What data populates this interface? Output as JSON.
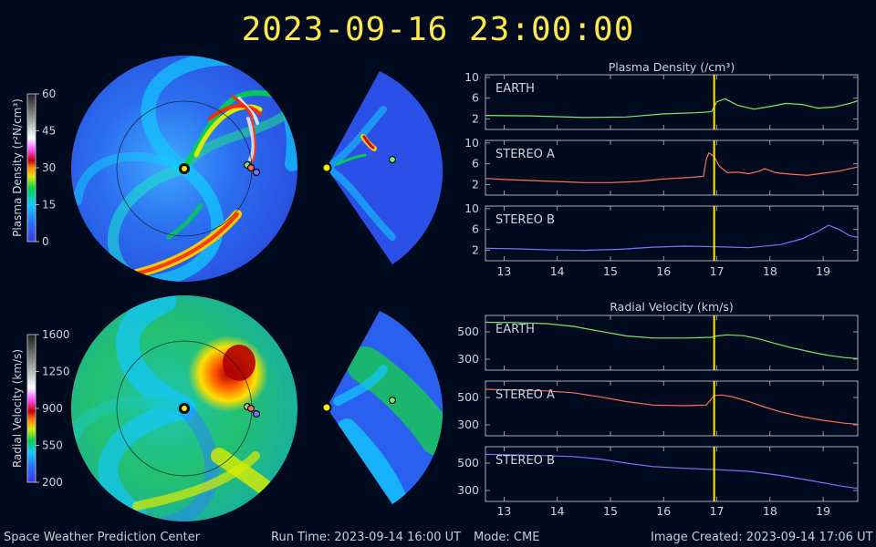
{
  "header": {
    "timestamp": "2023-09-16 23:00:00"
  },
  "footer": {
    "center": "Space Weather Prediction Center",
    "run_time": "Run Time: 2023-09-14 16:00 UT",
    "mode": "Mode: CME",
    "image_created": "Image Created: 2023-09-14 17:06 UT"
  },
  "colorbars": {
    "density": {
      "label": "Plasma Density (r²N/cm³)",
      "ticks": [
        "60",
        "45",
        "30",
        "15",
        "0"
      ]
    },
    "velocity": {
      "label": "Radial Velocity (km/s)",
      "ticks": [
        "1600",
        "1250",
        "900",
        "550",
        "200"
      ]
    }
  },
  "colors": {
    "earth": "#7dea6a",
    "stereo_a": "#ff6e5a",
    "stereo_b": "#6f78ff",
    "current_time": "#ffee00",
    "background": "#000a1e"
  },
  "chart_data": [
    {
      "type": "line",
      "title": "Plasma Density (/cm³)",
      "xlim": [
        12.65,
        19.65
      ],
      "x_ticks": [
        "13",
        "14",
        "15",
        "16",
        "17",
        "18",
        "19"
      ],
      "current_time_x": 16.95,
      "panels": [
        {
          "name": "EARTH",
          "color": "#7dea6a",
          "ylim": [
            0,
            10.5
          ],
          "y_ticks": [
            "10",
            "6",
            "2"
          ],
          "x": [
            12.65,
            13.5,
            14.5,
            15.3,
            16.0,
            16.6,
            16.9,
            17.0,
            17.15,
            17.4,
            17.7,
            18.0,
            18.3,
            18.6,
            18.9,
            19.2,
            19.5,
            19.65
          ],
          "y": [
            2.7,
            2.6,
            2.3,
            2.4,
            3.0,
            3.2,
            3.4,
            5.3,
            5.9,
            4.6,
            3.9,
            4.4,
            5.0,
            4.8,
            4.1,
            4.3,
            5.0,
            5.5
          ]
        },
        {
          "name": "STEREO A",
          "color": "#ff6e5a",
          "ylim": [
            0,
            10.5
          ],
          "y_ticks": [
            "10",
            "6",
            "2"
          ],
          "x": [
            12.65,
            13.0,
            13.5,
            14.0,
            14.5,
            15.0,
            15.5,
            16.0,
            16.5,
            16.75,
            16.8,
            16.85,
            16.95,
            17.05,
            17.2,
            17.4,
            17.6,
            17.8,
            17.9,
            18.1,
            18.4,
            18.7,
            19.0,
            19.3,
            19.65
          ],
          "y": [
            3.2,
            3.0,
            2.8,
            2.6,
            2.4,
            2.4,
            2.6,
            3.1,
            3.4,
            3.6,
            6.8,
            8.1,
            7.4,
            5.5,
            4.3,
            4.4,
            4.1,
            4.6,
            5.1,
            4.3,
            4.0,
            3.8,
            4.2,
            4.6,
            5.4
          ]
        },
        {
          "name": "STEREO B",
          "color": "#6f78ff",
          "ylim": [
            0,
            10.5
          ],
          "y_ticks": [
            "10",
            "6",
            "2"
          ],
          "x": [
            12.65,
            13.2,
            13.8,
            14.5,
            15.2,
            15.8,
            16.4,
            17.0,
            17.6,
            18.2,
            18.6,
            18.9,
            19.1,
            19.3,
            19.5,
            19.65
          ],
          "y": [
            2.4,
            2.3,
            2.1,
            2.0,
            2.2,
            2.6,
            2.8,
            2.7,
            2.5,
            3.1,
            4.2,
            5.6,
            6.8,
            6.0,
            4.8,
            4.5
          ]
        }
      ]
    },
    {
      "type": "line",
      "title": "Radial Velocity (km/s)",
      "xlim": [
        12.65,
        19.65
      ],
      "x_ticks": [
        "13",
        "14",
        "15",
        "16",
        "17",
        "18",
        "19"
      ],
      "current_time_x": 16.95,
      "panels": [
        {
          "name": "EARTH",
          "color": "#7dea6a",
          "ylim": [
            220,
            620
          ],
          "y_ticks": [
            "500",
            "300"
          ],
          "x": [
            12.65,
            13.2,
            13.8,
            14.3,
            14.8,
            15.3,
            15.8,
            16.4,
            16.9,
            17.0,
            17.2,
            17.5,
            17.8,
            18.1,
            18.4,
            18.8,
            19.1,
            19.4,
            19.65
          ],
          "y": [
            570,
            568,
            560,
            540,
            505,
            470,
            455,
            455,
            460,
            470,
            478,
            472,
            448,
            415,
            385,
            350,
            328,
            312,
            305
          ]
        },
        {
          "name": "STEREO A",
          "color": "#ff6e5a",
          "ylim": [
            220,
            620
          ],
          "y_ticks": [
            "500",
            "300"
          ],
          "x": [
            12.65,
            13.2,
            13.8,
            14.3,
            14.8,
            15.3,
            15.8,
            16.4,
            16.8,
            16.88,
            16.95,
            17.1,
            17.3,
            17.6,
            17.9,
            18.2,
            18.6,
            19.0,
            19.4,
            19.65
          ],
          "y": [
            560,
            555,
            548,
            535,
            505,
            470,
            445,
            440,
            445,
            480,
            515,
            518,
            505,
            470,
            430,
            395,
            360,
            333,
            312,
            305
          ]
        },
        {
          "name": "STEREO B",
          "color": "#6f78ff",
          "ylim": [
            220,
            620
          ],
          "y_ticks": [
            "500",
            "300"
          ],
          "x": [
            12.65,
            13.2,
            13.8,
            14.3,
            14.8,
            15.3,
            15.8,
            16.4,
            17.0,
            17.6,
            18.2,
            18.8,
            19.3,
            19.65
          ],
          "y": [
            565,
            560,
            555,
            548,
            530,
            500,
            475,
            462,
            452,
            440,
            410,
            370,
            335,
            315
          ]
        }
      ]
    }
  ]
}
